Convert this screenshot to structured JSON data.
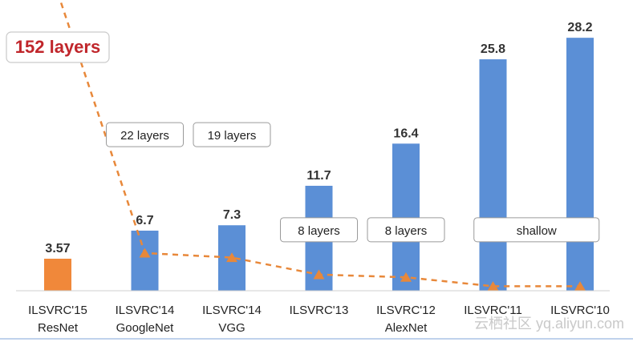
{
  "chart_data": {
    "type": "bar",
    "categories": [
      {
        "line1": "ILSVRC'15",
        "line2": "ResNet"
      },
      {
        "line1": "ILSVRC'14",
        "line2": "GoogleNet"
      },
      {
        "line1": "ILSVRC'14",
        "line2": "VGG"
      },
      {
        "line1": "ILSVRC'13",
        "line2": ""
      },
      {
        "line1": "ILSVRC'12",
        "line2": "AlexNet"
      },
      {
        "line1": "ILSVRC'11",
        "line2": ""
      },
      {
        "line1": "ILSVRC'10",
        "line2": ""
      }
    ],
    "values": [
      3.57,
      6.7,
      7.3,
      11.7,
      16.4,
      25.8,
      28.2
    ],
    "value_labels": [
      "3.57",
      "6.7",
      "7.3",
      "11.7",
      "16.4",
      "25.8",
      "28.2"
    ],
    "bar_colors": [
      "#f0883a",
      "#5b8fd6",
      "#5b8fd6",
      "#5b8fd6",
      "#5b8fd6",
      "#5b8fd6",
      "#5b8fd6"
    ],
    "ylim": [
      0,
      30
    ],
    "depth_labels": [
      {
        "text": "22 layers",
        "category_index": 1,
        "level": 17.4
      },
      {
        "text": "19 layers",
        "category_index": 2,
        "level": 17.4
      },
      {
        "text": "8 layers",
        "category_index": 3,
        "level": 6.8
      },
      {
        "text": "8 layers",
        "category_index": 4,
        "level": 6.8
      },
      {
        "text": "shallow",
        "category_index": 5.5,
        "level": 6.8
      }
    ],
    "callout": {
      "text": "152 layers",
      "color": "#c0262b"
    },
    "trend_line": {
      "color": "#e8883a",
      "style": "dashed",
      "levels": [
        33.2,
        4.2,
        3.7,
        1.8,
        1.5,
        0.5,
        0.5
      ]
    },
    "watermark": "云栖社区 yq.aliyun.com"
  }
}
